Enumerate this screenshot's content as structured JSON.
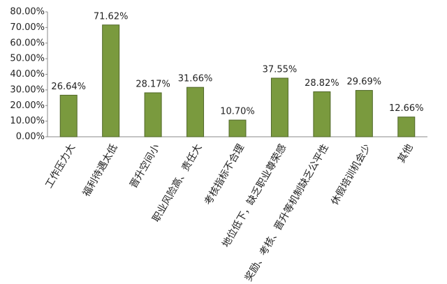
{
  "chart_data": {
    "type": "bar",
    "categories": [
      "工作压力大",
      "福利待遇太低",
      "晋升空间小",
      "职业风险高、责任大",
      "考核指标不合理",
      "地位低下，缺乏职业尊荣感",
      "奖励、考核、晋升等机制缺乏公平性",
      "休假培训机会少",
      "其他"
    ],
    "values": [
      26.64,
      71.62,
      28.17,
      31.66,
      10.7,
      37.55,
      28.82,
      29.69,
      12.66
    ],
    "value_labels": [
      "26.64%",
      "71.62%",
      "28.17%",
      "31.66%",
      "10.70%",
      "37.55%",
      "28.82%",
      "29.69%",
      "12.66%"
    ],
    "color": "#7a9a3e",
    "ylim": [
      0,
      80
    ],
    "yticks": [
      {
        "value": 0,
        "label": "0.00%"
      },
      {
        "value": 10,
        "label": "10.00%"
      },
      {
        "value": 20,
        "label": "20.00%"
      },
      {
        "value": 30,
        "label": "30.00%"
      },
      {
        "value": 40,
        "label": "40.00%"
      },
      {
        "value": 50,
        "label": "50.00%"
      },
      {
        "value": 60,
        "label": "60.00%"
      },
      {
        "value": 70,
        "label": "70.00%"
      },
      {
        "value": 80,
        "label": "80.00%"
      }
    ],
    "grid": false
  }
}
